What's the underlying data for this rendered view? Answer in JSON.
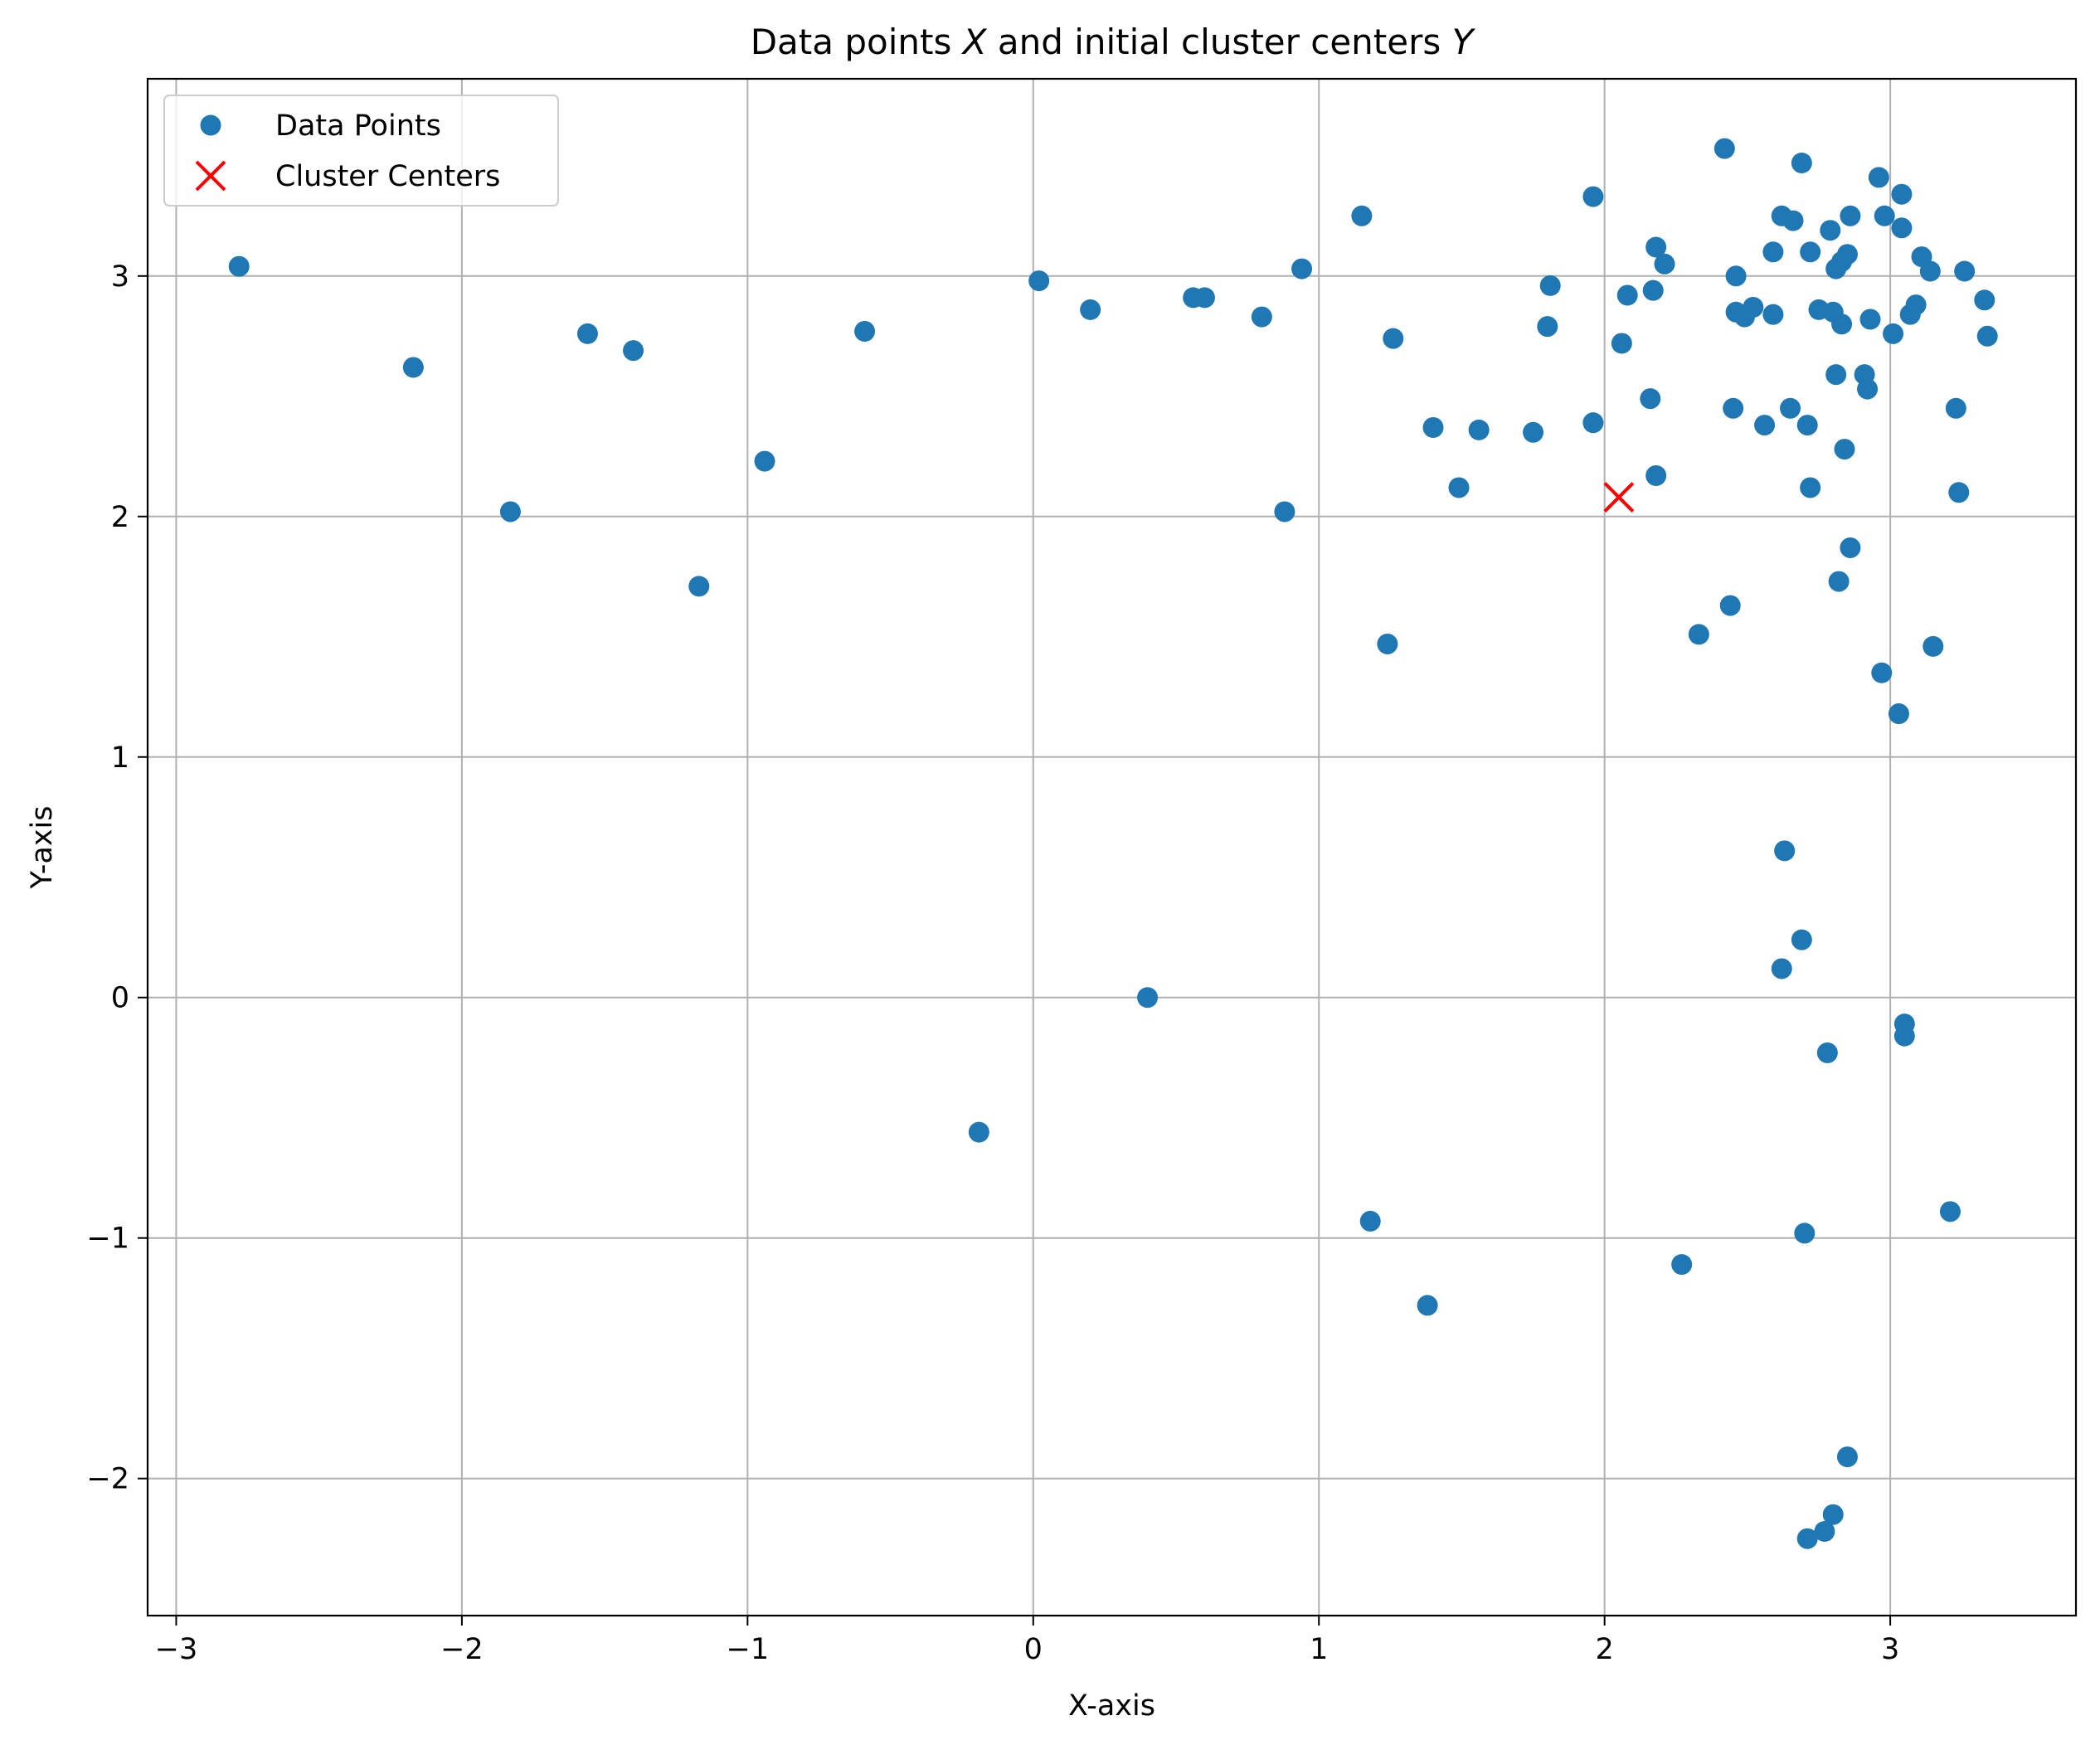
{
  "chart_data": {
    "type": "scatter",
    "title": "Data points X and initial cluster centers Y",
    "title_parts": [
      {
        "text": "Data points ",
        "italic": false
      },
      {
        "text": "X",
        "italic": true
      },
      {
        "text": " and initial cluster centers ",
        "italic": false
      },
      {
        "text": "Y",
        "italic": true
      }
    ],
    "xlabel": "X-axis",
    "ylabel": "Y-axis",
    "xlim": [
      -3.1,
      3.65
    ],
    "ylim": [
      -2.57,
      3.82
    ],
    "xticks": [
      -3,
      -2,
      -1,
      0,
      1,
      2,
      3
    ],
    "xtick_labels": [
      "−3",
      "−2",
      "−1",
      "0",
      "1",
      "2",
      "3"
    ],
    "yticks": [
      -2,
      -1,
      0,
      1,
      2,
      3
    ],
    "ytick_labels": [
      "−2",
      "−1",
      "0",
      "1",
      "2",
      "3"
    ],
    "grid": true,
    "legend": {
      "placement": "top-left",
      "entries": [
        {
          "label": "Data Points",
          "marker": "circle",
          "color": "#1f77b4"
        },
        {
          "label": "Cluster Centers",
          "marker": "x",
          "color": "#ff0000"
        }
      ]
    },
    "series": [
      {
        "name": "Data Points",
        "marker": "circle",
        "color": "#1f77b4",
        "points": [
          [
            -2.78,
            3.04
          ],
          [
            -2.17,
            2.62
          ],
          [
            -1.83,
            2.02
          ],
          [
            -1.56,
            2.76
          ],
          [
            -1.4,
            2.69
          ],
          [
            -1.17,
            1.71
          ],
          [
            -0.94,
            2.23
          ],
          [
            -0.59,
            2.77
          ],
          [
            -0.19,
            -0.56
          ],
          [
            0.02,
            2.98
          ],
          [
            0.2,
            2.86
          ],
          [
            0.4,
            0.0
          ],
          [
            0.56,
            2.91
          ],
          [
            0.6,
            2.91
          ],
          [
            0.8,
            2.83
          ],
          [
            0.88,
            2.02
          ],
          [
            0.94,
            3.03
          ],
          [
            1.15,
            3.25
          ],
          [
            1.18,
            -0.93
          ],
          [
            1.24,
            1.47
          ],
          [
            1.26,
            2.74
          ],
          [
            1.38,
            -1.28
          ],
          [
            1.4,
            2.37
          ],
          [
            1.49,
            2.12
          ],
          [
            1.56,
            2.36
          ],
          [
            1.75,
            2.35
          ],
          [
            1.8,
            2.79
          ],
          [
            1.81,
            2.96
          ],
          [
            1.96,
            3.33
          ],
          [
            1.96,
            2.39
          ],
          [
            2.06,
            2.72
          ],
          [
            2.08,
            2.92
          ],
          [
            2.16,
            2.49
          ],
          [
            2.17,
            2.94
          ],
          [
            2.18,
            2.17
          ],
          [
            2.18,
            3.12
          ],
          [
            2.21,
            3.05
          ],
          [
            2.27,
            -1.11
          ],
          [
            2.33,
            1.51
          ],
          [
            2.42,
            3.53
          ],
          [
            2.44,
            1.63
          ],
          [
            2.45,
            2.45
          ],
          [
            2.46,
            3.0
          ],
          [
            2.46,
            2.85
          ],
          [
            2.49,
            2.83
          ],
          [
            2.52,
            2.87
          ],
          [
            2.56,
            2.38
          ],
          [
            2.59,
            2.84
          ],
          [
            2.59,
            3.1
          ],
          [
            2.62,
            3.25
          ],
          [
            2.62,
            0.12
          ],
          [
            2.63,
            0.61
          ],
          [
            2.65,
            2.45
          ],
          [
            2.66,
            3.23
          ],
          [
            2.69,
            3.47
          ],
          [
            2.69,
            0.24
          ],
          [
            2.7,
            -0.98
          ],
          [
            2.71,
            2.38
          ],
          [
            2.72,
            3.1
          ],
          [
            2.72,
            2.12
          ],
          [
            2.71,
            -2.25
          ],
          [
            2.75,
            2.86
          ],
          [
            2.77,
            -2.22
          ],
          [
            2.78,
            -0.23
          ],
          [
            2.79,
            3.19
          ],
          [
            2.8,
            2.85
          ],
          [
            2.8,
            -2.15
          ],
          [
            2.81,
            3.03
          ],
          [
            2.81,
            2.59
          ],
          [
            2.82,
            1.73
          ],
          [
            2.83,
            3.06
          ],
          [
            2.83,
            2.8
          ],
          [
            2.84,
            2.28
          ],
          [
            2.85,
            3.09
          ],
          [
            2.85,
            -1.91
          ],
          [
            2.86,
            3.25
          ],
          [
            2.86,
            1.87
          ],
          [
            2.91,
            2.59
          ],
          [
            2.92,
            2.53
          ],
          [
            2.93,
            2.82
          ],
          [
            2.96,
            3.41
          ],
          [
            2.97,
            1.35
          ],
          [
            2.98,
            3.25
          ],
          [
            3.01,
            2.76
          ],
          [
            3.03,
            1.18
          ],
          [
            3.04,
            3.34
          ],
          [
            3.04,
            3.2
          ],
          [
            3.05,
            -0.11
          ],
          [
            3.05,
            -0.16
          ],
          [
            3.07,
            2.84
          ],
          [
            3.09,
            2.88
          ],
          [
            3.11,
            3.08
          ],
          [
            3.14,
            3.02
          ],
          [
            3.15,
            1.46
          ],
          [
            3.21,
            -0.89
          ],
          [
            3.23,
            2.45
          ],
          [
            3.24,
            2.1
          ],
          [
            3.26,
            3.02
          ],
          [
            3.33,
            2.9
          ],
          [
            3.34,
            2.75
          ]
        ]
      },
      {
        "name": "Cluster Centers",
        "marker": "x",
        "color": "#ff0000",
        "points": [
          [
            2.05,
            2.08
          ]
        ]
      }
    ]
  }
}
